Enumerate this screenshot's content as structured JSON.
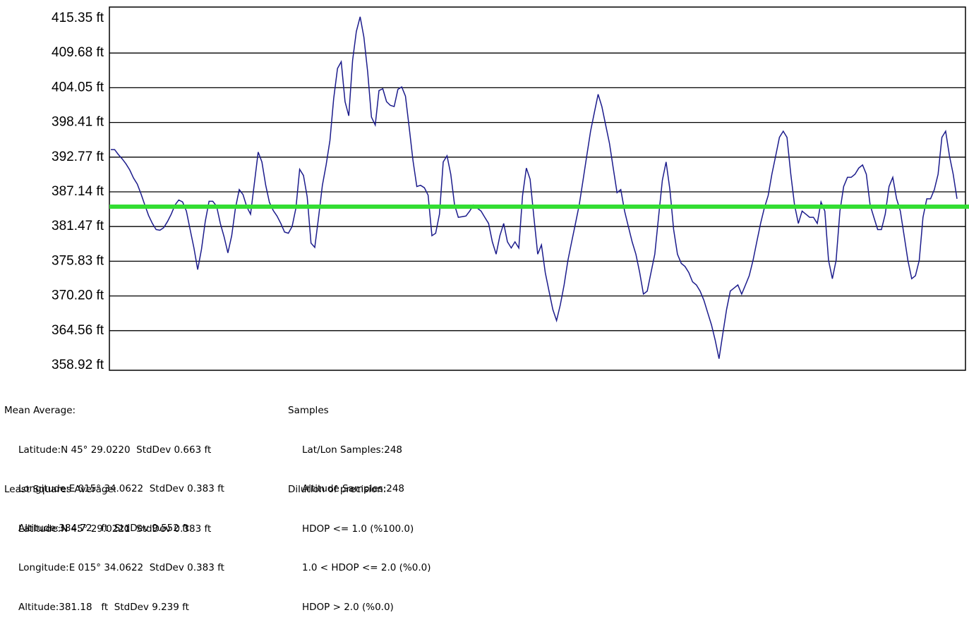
{
  "chart_data": {
    "type": "line",
    "ylabel": "",
    "xlabel": "",
    "title": "",
    "y_unit": "ft",
    "yticks": [
      "415.35 ft",
      "409.68 ft",
      "404.05 ft",
      "398.41 ft",
      "392.77 ft",
      "387.14 ft",
      "381.47 ft",
      "375.83 ft",
      "370.20 ft",
      "364.56 ft",
      "358.92 ft"
    ],
    "ylim": [
      358.92,
      415.35
    ],
    "grid": true,
    "reference_line": {
      "value": 384.72,
      "color": "#33dd33"
    },
    "series_color": "#1c1c8c",
    "values": [
      394.0,
      394.0,
      393.2,
      392.5,
      391.7,
      390.7,
      389.4,
      388.4,
      386.8,
      385.0,
      383.3,
      382.0,
      381.0,
      380.9,
      381.3,
      382.3,
      383.5,
      385.0,
      385.8,
      385.5,
      384.0,
      381.0,
      378.0,
      374.5,
      377.8,
      382.3,
      385.6,
      385.6,
      384.8,
      382.0,
      379.8,
      377.2,
      380.0,
      384.5,
      387.5,
      386.7,
      384.7,
      383.5,
      388.5,
      393.6,
      392.0,
      388.2,
      385.4,
      384.1,
      383.2,
      382.0,
      380.6,
      380.4,
      381.5,
      384.5,
      390.8,
      389.8,
      386.3,
      378.8,
      378.1,
      383.0,
      388.2,
      391.5,
      395.5,
      402.3,
      407.2,
      408.3,
      401.8,
      399.5,
      408.5,
      413.2,
      415.6,
      412.3,
      406.6,
      399.3,
      398.0,
      403.6,
      403.9,
      401.8,
      401.2,
      401.0,
      403.8,
      404.2,
      402.7,
      397.5,
      392.2,
      388.0,
      388.2,
      387.8,
      386.6,
      380.0,
      380.4,
      383.5,
      392.0,
      393.0,
      390.0,
      385.0,
      383.0,
      383.1,
      383.2,
      384.0,
      385.0,
      384.5,
      384.0,
      383.0,
      382.0,
      379.0,
      377.0,
      380.0,
      382.0,
      379.0,
      378.0,
      379.0,
      378.0,
      386.5,
      391.0,
      389.2,
      383.0,
      377.0,
      378.5,
      374.0,
      371.0,
      368.0,
      366.2,
      368.8,
      372.0,
      376.0,
      379.0,
      382.0,
      385.0,
      389.0,
      393.0,
      397.0,
      400.0,
      403.0,
      401.0,
      398.0,
      395.0,
      391.0,
      387.0,
      387.5,
      384.0,
      381.5,
      379.0,
      377.0,
      374.0,
      370.5,
      371.0,
      374.0,
      377.0,
      383.0,
      389.0,
      392.0,
      387.5,
      381.0,
      377.0,
      375.5,
      375.0,
      374.0,
      372.5,
      372.0,
      371.0,
      369.5,
      367.5,
      365.5,
      363.0,
      360.0,
      364.0,
      368.0,
      371.0,
      371.5,
      372.0,
      370.5,
      372.0,
      373.5,
      376.0,
      379.0,
      382.0,
      384.5,
      386.5,
      390.0,
      393.0,
      396.0,
      397.0,
      396.0,
      390.0,
      385.0,
      382.0,
      384.0,
      383.5,
      383.0,
      383.0,
      382.0,
      385.5,
      384.0,
      376.0,
      373.0,
      376.0,
      384.0,
      388.0,
      389.5,
      389.5,
      390.0,
      391.0,
      391.5,
      390.0,
      385.0,
      383.0,
      381.0,
      381.0,
      383.5,
      388.0,
      389.5,
      386.0,
      384.0,
      380.0,
      376.0,
      373.0,
      373.5,
      376.0,
      383.0,
      386.0,
      386.0,
      387.5,
      390.0,
      396.0,
      397.0,
      393.0,
      390.0,
      386.0
    ],
    "series_name": ""
  },
  "stats": {
    "mean_title": "Mean Average:",
    "mean_lat": "Latitude:N 45° 29.0220  StdDev 0.663 ft",
    "mean_lon": "Longitude:E 015° 34.0622  StdDev 0.383 ft",
    "mean_alt": "Altitude:384.72   ft  StdDev 9.552 ft",
    "samples_title": "Samples",
    "samples_latlon": "Lat/Lon Samples:248",
    "samples_alt": "Altitude Samples:248",
    "ls_title": "Least Squares Average:",
    "ls_lat": "Latitude:N 45° 29.0221  StdDev 0.383 ft",
    "ls_lon": "Longitude:E 015° 34.0622  StdDev 0.383 ft",
    "ls_alt": "Altitude:381.18   ft  StdDev 9.239 ft",
    "dop_title": "Dilution of precision:",
    "dop_1": "HDOP <= 1.0 (%100.0)",
    "dop_2": "1.0 < HDOP <= 2.0 (%0.0)",
    "dop_3": "HDOP > 2.0 (%0.0)"
  }
}
